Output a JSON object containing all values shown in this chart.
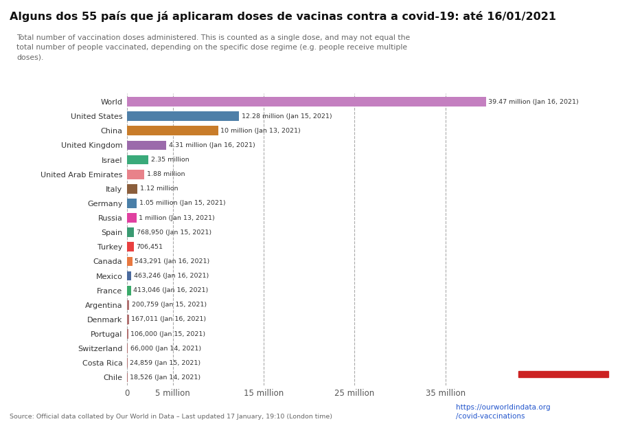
{
  "title": "Alguns dos 55 país que já aplicaram doses de vacinas contra a covid-19: até 16/01/2021",
  "subtitle": "Total number of vaccination doses administered. This is counted as a single dose, and may not equal the\ntotal number of people vaccinated, depending on the specific dose regime (e.g. people receive multiple\ndoses).",
  "countries": [
    "World",
    "United States",
    "China",
    "United Kingdom",
    "Israel",
    "United Arab Emirates",
    "Italy",
    "Germany",
    "Russia",
    "Spain",
    "Turkey",
    "Canada",
    "Mexico",
    "France",
    "Argentina",
    "Denmark",
    "Portugal",
    "Switzerland",
    "Costa Rica",
    "Chile"
  ],
  "values": [
    39470000,
    12280000,
    10000000,
    4310000,
    2350000,
    1880000,
    1120000,
    1050000,
    1000000,
    768950,
    706451,
    543291,
    463246,
    413046,
    200759,
    167011,
    106000,
    66000,
    24859,
    18526
  ],
  "labels": [
    "39.47 million (Jan 16, 2021)",
    "12.28 million (Jan 15, 2021)",
    "10 million (Jan 13, 2021)",
    "4.31 million (Jan 16, 2021)",
    "2.35 million",
    "1.88 million",
    "1.12 million",
    "1.05 million (Jan 15, 2021)",
    "1 million (Jan 13, 2021)",
    "768,950 (Jan 15, 2021)",
    "706,451",
    "543,291 (Jan 16, 2021)",
    "463,246 (Jan 16, 2021)",
    "413,046 (Jan 16, 2021)",
    "200,759 (Jan 15, 2021)",
    "167,011 (Jan 16, 2021)",
    "106,000 (Jan 15, 2021)",
    "66,000 (Jan 14, 2021)",
    "24,859 (Jan 15, 2021)",
    "18,526 (Jan 14, 2021)"
  ],
  "colors": [
    "#c47fc0",
    "#4e7fa8",
    "#c87c2a",
    "#9b6aab",
    "#3aaa7a",
    "#e8828a",
    "#8b5e3c",
    "#4a7fa8",
    "#e040a0",
    "#3a9a72",
    "#e84040",
    "#e87840",
    "#4a6a9e",
    "#3aaa6a",
    "#b07070",
    "#b07070",
    "#b07070",
    "#b07070",
    "#b07070",
    "#b07070"
  ],
  "background_color": "#ffffff",
  "subtitle_bg": "#eeeeee",
  "source_text": "Source: Official data collated by Our World in Data – Last updated 17 January, 19:10 (London time)",
  "url_text": "https://ourworldindata.org\n/covid-vaccinations",
  "xlim": [
    0,
    42000000
  ],
  "xticks": [
    0,
    5000000,
    15000000,
    25000000,
    35000000
  ],
  "xtick_labels": [
    "0",
    "5 million",
    "15 million",
    "25 million",
    "35 million"
  ],
  "grid_color": "#aaaaaa",
  "owid_box_bg": "#1a2e4a",
  "owid_box_red": "#cc2222",
  "text_color": "#333333",
  "title_color": "#111111",
  "url_color": "#2255cc"
}
